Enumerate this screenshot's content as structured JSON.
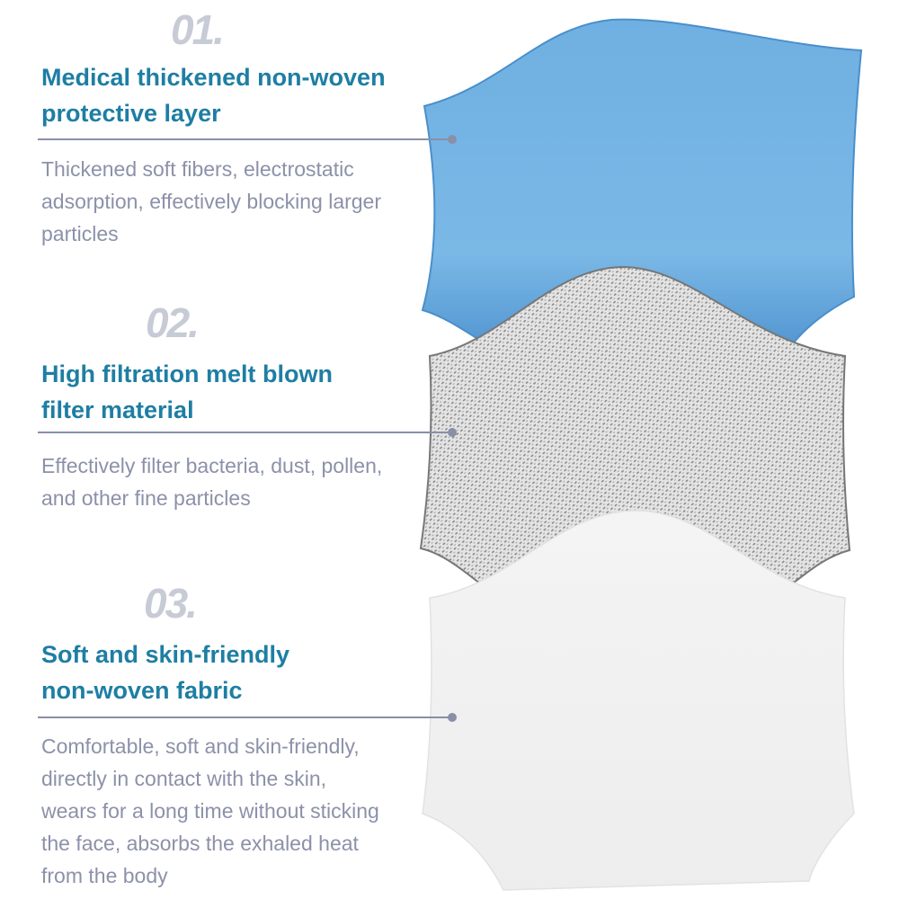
{
  "layers": [
    {
      "number": "01.",
      "title_line1": "Medical thickened non-woven",
      "title_line2": "protective layer",
      "desc_lines": [
        "Thickened soft fibers, electrostatic",
        "adsorption, effectively blocking larger",
        "particles"
      ],
      "color": "#72b2e2"
    },
    {
      "number": "02.",
      "title_line1": "High filtration melt blown",
      "title_line2": "filter material",
      "desc_lines": [
        "Effectively filter bacteria, dust, pollen,",
        "and other fine particles"
      ],
      "color": "#d8d8d8"
    },
    {
      "number": "03.",
      "title_line1": "Soft and skin-friendly",
      "title_line2": "non-woven fabric",
      "desc_lines": [
        "Comfortable, soft and skin-friendly,",
        "directly in contact with the skin,",
        "wears for a long time without sticking",
        "the face, absorbs the exhaled heat",
        "from the body"
      ],
      "color": "#f2f2f2"
    }
  ],
  "colors": {
    "title": "#1e7ea3",
    "desc": "#8c91a9",
    "number": "#c7cbd6",
    "leader": "#8a8fa8"
  }
}
